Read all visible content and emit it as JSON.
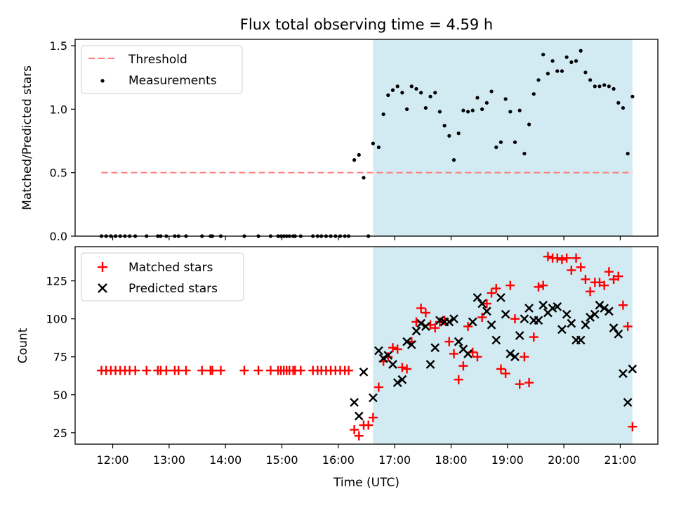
{
  "figure": {
    "title": "Flux total observing time = 4.59 h",
    "xlabel": "Time (UTC)"
  },
  "colors": {
    "shade": "#add8e6",
    "threshold": "#ff7f7f",
    "measurement": "#000000",
    "matched": "#ff0000",
    "predicted": "#000000"
  },
  "chart_data": [
    {
      "type": "scatter",
      "ylabel": "Matched/Predicted stars",
      "xlim": [
        "11:20",
        "21:40"
      ],
      "ylim": [
        0,
        1.55
      ],
      "yticks": [
        0.0,
        0.5,
        1.0,
        1.5
      ],
      "ytick_labels": [
        "0.0",
        "0.5",
        "1.0",
        "1.5"
      ],
      "shaded_span": [
        "16:37",
        "21:13"
      ],
      "legend_position": "upper left",
      "threshold": {
        "name": "Threshold",
        "value": 0.5,
        "x_range": [
          "11:48",
          "21:13"
        ],
        "style": "dashed"
      },
      "series": [
        {
          "name": "Measurements",
          "marker": "dot",
          "x": [
            "11:48",
            "11:53",
            "11:58",
            "12:03",
            "12:08",
            "12:13",
            "12:18",
            "12:24",
            "12:36",
            "12:48",
            "12:51",
            "12:57",
            "13:06",
            "13:10",
            "13:18",
            "13:35",
            "13:44",
            "13:46",
            "13:55",
            "14:20",
            "14:35",
            "14:48",
            "14:56",
            "14:59",
            "15:02",
            "15:05",
            "15:08",
            "15:12",
            "15:14",
            "15:20",
            "15:33",
            "15:38",
            "15:42",
            "15:47",
            "15:52",
            "15:57",
            "16:02",
            "16:07",
            "16:11",
            "16:17",
            "16:22",
            "16:27",
            "16:32",
            "16:37",
            "16:43",
            "16:48",
            "16:53",
            "16:58",
            "17:03",
            "17:08",
            "17:13",
            "17:18",
            "17:23",
            "17:28",
            "17:33",
            "17:38",
            "17:43",
            "17:48",
            "17:53",
            "17:58",
            "18:03",
            "18:08",
            "18:13",
            "18:18",
            "18:23",
            "18:28",
            "18:33",
            "18:38",
            "18:43",
            "18:48",
            "18:53",
            "18:58",
            "19:03",
            "19:08",
            "19:13",
            "19:18",
            "19:23",
            "19:28",
            "19:33",
            "19:38",
            "19:43",
            "19:48",
            "19:53",
            "19:58",
            "20:03",
            "20:08",
            "20:13",
            "20:18",
            "20:23",
            "20:28",
            "20:33",
            "20:38",
            "20:43",
            "20:48",
            "20:53",
            "20:58",
            "21:03",
            "21:08",
            "21:13"
          ],
          "y": [
            0,
            0,
            0,
            0,
            0,
            0,
            0,
            0,
            0,
            0,
            0,
            0,
            0,
            0,
            0,
            0,
            0,
            0,
            0,
            0,
            0,
            0,
            0,
            0,
            0,
            0,
            0,
            0,
            0,
            0,
            0,
            0,
            0,
            0,
            0,
            0,
            0,
            0,
            0,
            0.6,
            0.64,
            0.46,
            0,
            0.73,
            0.7,
            0.96,
            1.11,
            1.15,
            1.18,
            1.13,
            1.0,
            1.18,
            1.16,
            1.13,
            1.01,
            1.1,
            1.13,
            0.98,
            0.87,
            0.79,
            0.6,
            0.81,
            0.99,
            0.98,
            0.99,
            1.09,
            1.0,
            1.05,
            1.14,
            0.7,
            0.74,
            1.08,
            0.98,
            0.74,
            0.99,
            0.65,
            0.88,
            1.12,
            1.23,
            1.43,
            1.28,
            1.38,
            1.3,
            1.3,
            1.41,
            1.37,
            1.38,
            1.46,
            1.29,
            1.23,
            1.18,
            1.18,
            1.19,
            1.18,
            1.16,
            1.05,
            1.01,
            0.65,
            1.1
          ]
        }
      ]
    },
    {
      "type": "scatter",
      "ylabel": "Count",
      "xlim": [
        "11:20",
        "21:40"
      ],
      "ylim": [
        17.5,
        147.5
      ],
      "yticks": [
        25,
        50,
        75,
        100,
        125
      ],
      "xticks": [
        "12:00",
        "13:00",
        "14:00",
        "15:00",
        "16:00",
        "17:00",
        "18:00",
        "19:00",
        "20:00",
        "21:00"
      ],
      "shaded_span": [
        "16:37",
        "21:13"
      ],
      "legend_position": "upper left",
      "series": [
        {
          "name": "Matched stars",
          "marker": "plus",
          "x": [
            "11:48",
            "11:53",
            "11:58",
            "12:03",
            "12:08",
            "12:13",
            "12:18",
            "12:24",
            "12:36",
            "12:48",
            "12:51",
            "12:57",
            "13:06",
            "13:10",
            "13:18",
            "13:35",
            "13:44",
            "13:46",
            "13:55",
            "14:20",
            "14:35",
            "14:48",
            "14:56",
            "14:59",
            "15:02",
            "15:05",
            "15:08",
            "15:12",
            "15:14",
            "15:20",
            "15:33",
            "15:38",
            "15:42",
            "15:47",
            "15:52",
            "15:57",
            "16:02",
            "16:07",
            "16:11",
            "16:17",
            "16:22",
            "16:27",
            "16:32",
            "16:37",
            "16:43",
            "16:48",
            "16:53",
            "16:58",
            "17:03",
            "17:08",
            "17:13",
            "17:18",
            "17:23",
            "17:28",
            "17:33",
            "17:38",
            "17:43",
            "17:48",
            "17:53",
            "17:58",
            "18:03",
            "18:08",
            "18:13",
            "18:18",
            "18:23",
            "18:28",
            "18:33",
            "18:38",
            "18:43",
            "18:48",
            "18:53",
            "18:58",
            "19:03",
            "19:08",
            "19:13",
            "19:18",
            "19:23",
            "19:28",
            "19:33",
            "19:38",
            "19:43",
            "19:48",
            "19:53",
            "19:58",
            "20:03",
            "20:08",
            "20:13",
            "20:18",
            "20:23",
            "20:28",
            "20:33",
            "20:38",
            "20:43",
            "20:48",
            "20:53",
            "20:58",
            "21:03",
            "21:08",
            "21:13"
          ],
          "y": [
            66,
            66,
            66,
            66,
            66,
            66,
            66,
            66,
            66,
            66,
            66,
            66,
            66,
            66,
            66,
            66,
            66,
            66,
            66,
            66,
            66,
            66,
            66,
            66,
            66,
            66,
            66,
            66,
            66,
            66,
            66,
            66,
            66,
            66,
            66,
            66,
            66,
            66,
            66,
            27,
            23,
            30,
            30,
            35,
            55,
            72,
            75,
            81,
            80,
            68,
            67,
            85,
            98,
            107,
            104,
            96,
            94,
            98,
            99,
            85,
            77,
            60,
            69,
            95,
            78,
            75,
            101,
            110,
            117,
            120,
            67,
            64,
            122,
            100,
            57,
            75,
            58,
            88,
            121,
            122,
            141,
            140,
            140,
            139,
            140,
            132,
            140,
            134,
            126,
            118,
            124,
            124,
            122,
            131,
            126,
            128,
            109,
            95,
            29
          ]
        },
        {
          "name": "Predicted stars",
          "marker": "x",
          "x": [
            "16:17",
            "16:22",
            "16:27",
            "16:37",
            "16:43",
            "16:48",
            "16:53",
            "16:58",
            "17:03",
            "17:08",
            "17:13",
            "17:18",
            "17:23",
            "17:28",
            "17:33",
            "17:38",
            "17:43",
            "17:48",
            "17:53",
            "17:58",
            "18:03",
            "18:08",
            "18:13",
            "18:18",
            "18:23",
            "18:28",
            "18:33",
            "18:38",
            "18:43",
            "18:48",
            "18:53",
            "18:58",
            "19:03",
            "19:08",
            "19:13",
            "19:18",
            "19:23",
            "19:28",
            "19:33",
            "19:38",
            "19:43",
            "19:48",
            "19:53",
            "19:58",
            "20:03",
            "20:08",
            "20:13",
            "20:18",
            "20:23",
            "20:28",
            "20:33",
            "20:38",
            "20:43",
            "20:48",
            "20:53",
            "20:58",
            "21:03",
            "21:08",
            "21:13"
          ],
          "y": [
            45,
            36,
            65,
            48,
            79,
            74,
            76,
            70,
            58,
            60,
            85,
            83,
            92,
            97,
            95,
            70,
            81,
            99,
            98,
            98,
            100,
            85,
            80,
            77,
            98,
            114,
            110,
            105,
            96,
            86,
            114,
            103,
            77,
            75,
            89,
            100,
            107,
            99,
            99,
            109,
            104,
            107,
            108,
            93,
            103,
            97,
            86,
            86,
            96,
            101,
            103,
            109,
            107,
            105,
            94,
            90,
            64,
            45,
            67
          ]
        }
      ]
    }
  ]
}
